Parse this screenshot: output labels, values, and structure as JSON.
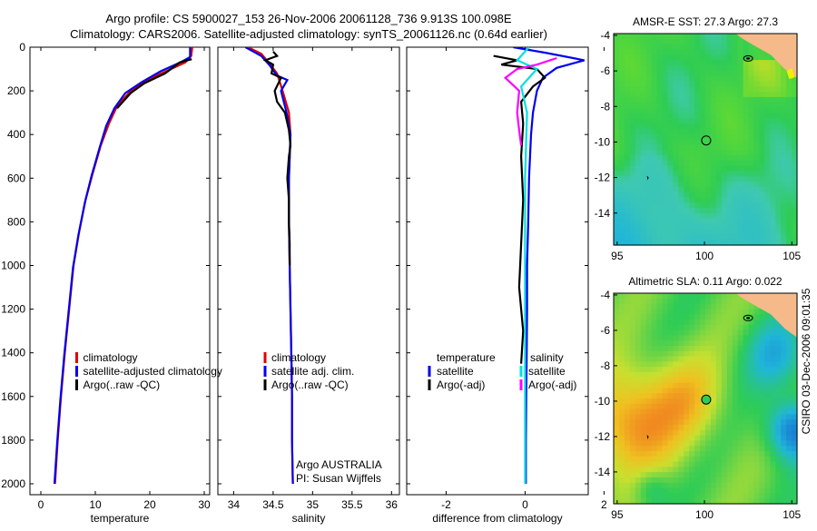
{
  "figure": {
    "title_line1": "Argo profile: CS 5900027_153 26-Nov-2006 20061128_736 9.913S 100.098E",
    "title_line2": "Climatology: CARS2006. Satellite-adjusted climatology: synTS_20061126.nc (0.64d earlier)",
    "credit": "CSIRO 03-Dec-2006 09:01:35"
  },
  "colors": {
    "climatology": "#e00000",
    "satellite": "#0000ee",
    "argo": "#000000",
    "sal_satellite": "#00e0e0",
    "sal_argo": "#ff00ff",
    "land": "#f5b98a",
    "ocean_green": "#2ecc55"
  },
  "chart_data": [
    {
      "id": "temperature",
      "type": "line",
      "xlabel": "temperature",
      "xlim": [
        -2,
        31
      ],
      "ylim": [
        0,
        2050
      ],
      "y_inverted": true,
      "xticks": [
        0,
        10,
        20,
        30
      ],
      "yticks": [
        0,
        200,
        400,
        600,
        800,
        1000,
        1200,
        1400,
        1600,
        1800,
        2000
      ],
      "legend": [
        "climatology",
        "satellite-adjusted climatology",
        "Argo(..raw -QC)"
      ],
      "series": [
        {
          "name": "climatology",
          "key": "climatology",
          "points": [
            [
              27.8,
              0
            ],
            [
              27.6,
              40
            ],
            [
              26.5,
              70
            ],
            [
              23,
              110
            ],
            [
              19.5,
              150
            ],
            [
              16.5,
              200
            ],
            [
              14,
              270
            ],
            [
              12.5,
              350
            ],
            [
              11,
              450
            ],
            [
              9.5,
              580
            ],
            [
              8.2,
              700
            ],
            [
              7,
              850
            ],
            [
              6,
              1000
            ],
            [
              5.2,
              1200
            ],
            [
              4.4,
              1400
            ],
            [
              3.7,
              1600
            ],
            [
              3.1,
              1800
            ],
            [
              2.6,
              2000
            ]
          ]
        },
        {
          "name": "satellite",
          "key": "satellite",
          "points": [
            [
              27.4,
              0
            ],
            [
              27.4,
              45
            ],
            [
              25.6,
              70
            ],
            [
              22,
              110
            ],
            [
              18.5,
              160
            ],
            [
              15.5,
              210
            ],
            [
              13.5,
              280
            ],
            [
              12,
              360
            ],
            [
              10.8,
              460
            ],
            [
              9.3,
              590
            ],
            [
              8.1,
              710
            ],
            [
              6.9,
              860
            ],
            [
              5.9,
              1010
            ],
            [
              5.1,
              1210
            ],
            [
              4.3,
              1410
            ],
            [
              3.6,
              1610
            ],
            [
              3,
              1810
            ],
            [
              2.5,
              2000
            ]
          ]
        },
        {
          "name": "argo",
          "key": "argo",
          "points": [
            [
              27.7,
              55
            ],
            [
              25.5,
              70
            ],
            [
              22.8,
              120
            ],
            [
              19,
              165
            ],
            [
              16.5,
              210
            ],
            [
              14,
              280
            ]
          ]
        }
      ]
    },
    {
      "id": "salinity",
      "type": "line",
      "xlabel": "salinity",
      "xlim": [
        33.8,
        36.1
      ],
      "ylim": [
        0,
        2050
      ],
      "y_inverted": true,
      "xticks": [
        34,
        34.5,
        35,
        35.5,
        36
      ],
      "legend": [
        "climatology",
        "satellite adj. clim.",
        "Argo(..raw -QC)"
      ],
      "annotation": [
        "Argo AUSTRALIA",
        "PI: Susan Wijffels"
      ],
      "series": [
        {
          "name": "climatology",
          "key": "climatology",
          "points": [
            [
              34.18,
              0
            ],
            [
              34.35,
              30
            ],
            [
              34.42,
              60
            ],
            [
              34.55,
              120
            ],
            [
              34.62,
              200
            ],
            [
              34.7,
              300
            ],
            [
              34.72,
              400
            ],
            [
              34.7,
              600
            ],
            [
              34.7,
              800
            ],
            [
              34.71,
              1000
            ],
            [
              34.72,
              1200
            ],
            [
              34.73,
              1400
            ],
            [
              34.74,
              1600
            ],
            [
              34.74,
              1800
            ],
            [
              34.75,
              2000
            ]
          ]
        },
        {
          "name": "satellite",
          "key": "satellite",
          "points": [
            [
              34.15,
              0
            ],
            [
              34.25,
              20
            ],
            [
              34.35,
              40
            ],
            [
              34.45,
              80
            ],
            [
              34.55,
              130
            ],
            [
              34.68,
              150
            ],
            [
              34.6,
              200
            ],
            [
              34.67,
              300
            ],
            [
              34.72,
              400
            ],
            [
              34.7,
              600
            ],
            [
              34.7,
              800
            ],
            [
              34.71,
              1000
            ],
            [
              34.72,
              1200
            ],
            [
              34.73,
              1400
            ],
            [
              34.74,
              1600
            ],
            [
              34.74,
              1800
            ],
            [
              34.75,
              2000
            ]
          ]
        },
        {
          "name": "argo",
          "key": "argo",
          "points": [
            [
              34.5,
              20
            ],
            [
              34.55,
              40
            ],
            [
              34.4,
              60
            ],
            [
              34.5,
              80
            ],
            [
              34.48,
              120
            ],
            [
              34.6,
              140
            ],
            [
              34.52,
              200
            ],
            [
              34.55,
              250
            ],
            [
              34.65,
              300
            ],
            [
              34.7,
              380
            ],
            [
              34.72,
              450
            ],
            [
              34.7,
              500
            ],
            [
              34.68,
              600
            ],
            [
              34.7,
              700
            ],
            [
              34.7,
              800
            ],
            [
              34.71,
              900
            ],
            [
              34.71,
              1000
            ]
          ]
        }
      ]
    },
    {
      "id": "difference",
      "type": "line",
      "xlabel": "difference from climatology",
      "xlim": [
        -3,
        1.6
      ],
      "ylim": [
        0,
        2050
      ],
      "y_inverted": true,
      "xticks": [
        -2,
        0,
        2
      ],
      "legend_left_title": "temperature",
      "legend_right_title": "salinity",
      "legend_left": [
        "satellite",
        "Argo(-adj)"
      ],
      "legend_right": [
        "satellite",
        "Argo(-adj)"
      ],
      "series": [
        {
          "name": "temp satellite",
          "key": "satellite",
          "points": [
            [
              -0.3,
              0
            ],
            [
              0.5,
              25
            ],
            [
              1.5,
              60
            ],
            [
              0.8,
              95
            ],
            [
              0.45,
              140
            ],
            [
              0.3,
              200
            ],
            [
              0.2,
              300
            ],
            [
              0.15,
              400
            ],
            [
              0.1,
              600
            ],
            [
              0.08,
              800
            ],
            [
              0.05,
              1000
            ],
            [
              0.05,
              1200
            ],
            [
              0.04,
              1400
            ],
            [
              0.03,
              1600
            ],
            [
              0.02,
              1800
            ],
            [
              0.02,
              2000
            ]
          ]
        },
        {
          "name": "temp argo",
          "key": "argo",
          "points": [
            [
              -0.8,
              40
            ],
            [
              -0.2,
              60
            ],
            [
              -0.6,
              80
            ],
            [
              0.3,
              100
            ],
            [
              0.5,
              140
            ],
            [
              0.2,
              180
            ],
            [
              -0.1,
              250
            ],
            [
              -0.05,
              350
            ],
            [
              -0.1,
              500
            ],
            [
              -0.05,
              700
            ],
            [
              -0.1,
              900
            ],
            [
              -0.15,
              1100
            ],
            [
              -0.05,
              1300
            ],
            [
              -0.1,
              1450
            ]
          ]
        },
        {
          "name": "sal satellite",
          "key": "sal_satellite",
          "points": [
            [
              0.1,
              0
            ],
            [
              -0.2,
              60
            ],
            [
              0.3,
              100
            ],
            [
              -0.1,
              180
            ],
            [
              0.05,
              300
            ],
            [
              0,
              600
            ],
            [
              0,
              1000
            ],
            [
              0,
              1400
            ],
            [
              0,
              1800
            ],
            [
              0,
              2000
            ]
          ]
        },
        {
          "name": "sal argo",
          "key": "sal_argo",
          "points": [
            [
              0.8,
              50
            ],
            [
              0.3,
              80
            ],
            [
              -0.2,
              100
            ],
            [
              -0.5,
              140
            ],
            [
              -0.15,
              200
            ],
            [
              -0.2,
              300
            ],
            [
              -0.15,
              380
            ],
            [
              -0.1,
              450
            ]
          ]
        }
      ]
    }
  ],
  "maps": [
    {
      "title": "AMSR-E SST: 27.3 Argo: 27.3",
      "xticks": [
        95,
        100,
        105
      ],
      "yticks": [
        -4,
        -6,
        -8,
        -10,
        -12,
        -14
      ],
      "xlim": [
        94.8,
        105.3
      ],
      "ylim": [
        -15.8,
        -3.9
      ],
      "float_lon": 100.098,
      "float_lat": -9.913,
      "palette": "sst"
    },
    {
      "title": "Altimetric SLA: 0.11 Argo: 0.022",
      "xticks": [
        95,
        100,
        105
      ],
      "yticks": [
        -4,
        -6,
        -8,
        -10,
        -12,
        -14
      ],
      "xlim": [
        94.8,
        105.3
      ],
      "ylim": [
        -15.8,
        -3.9
      ],
      "float_lon": 100.098,
      "float_lat": -9.913,
      "palette": "sla"
    }
  ]
}
